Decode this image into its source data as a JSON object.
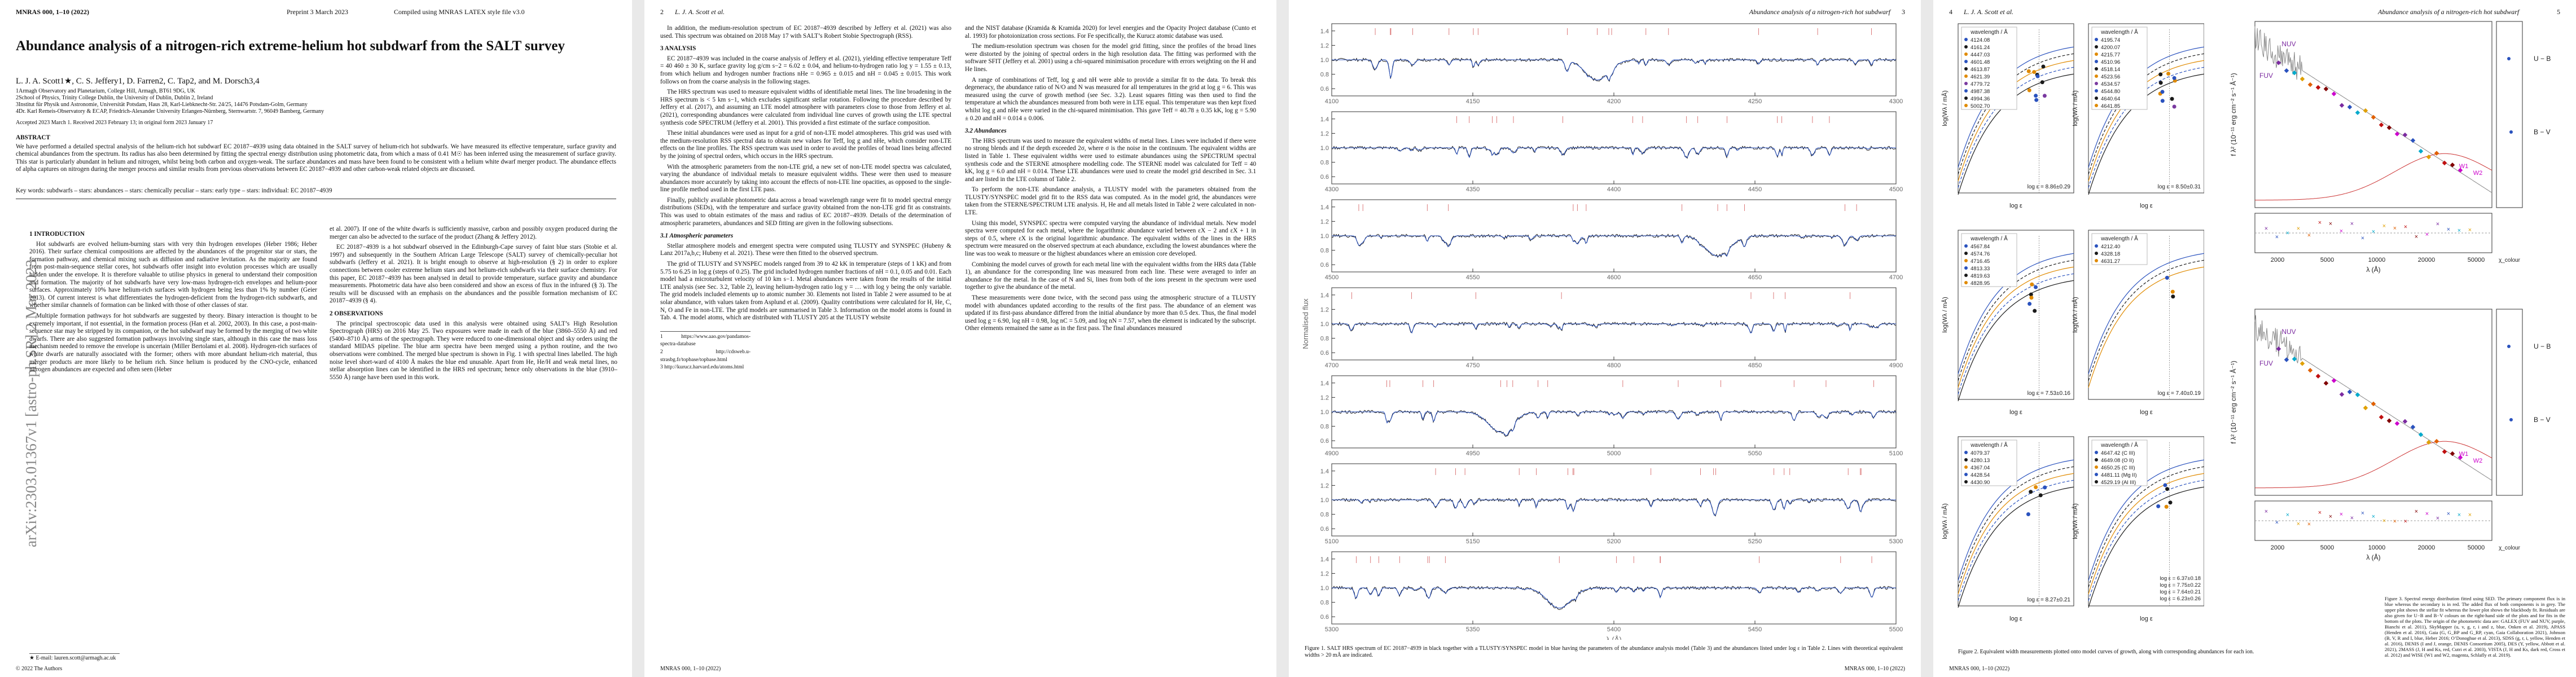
{
  "page1": {
    "header_left": "MNRAS 000, 1–10 (2022)",
    "header_mid": "Preprint 3 March 2023",
    "header_right": "Compiled using MNRAS LATEX style file v3.0",
    "title": "Abundance analysis of a nitrogen-rich extreme-helium hot subdwarf from the SALT survey",
    "authors": "L. J. A. Scott1★, C. S. Jeffery1, D. Farren2, C. Tap2, and M. Dorsch3,4",
    "affiliations": [
      "1Armagh Observatory and Planetarium, College Hill, Armagh, BT61 9DG, UK",
      "2School of Physics, Trinity College Dublin, the University of Dublin, Dublin 2, Ireland",
      "3Institut für Physik und Astronomie, Universität Potsdam, Haus 28, Karl-Liebknecht-Str. 24/25, 14476 Potsdam-Golm, Germany",
      "4Dr. Karl Remeis-Observatory & ECAP, Friedrich-Alexander University Erlangen-Nürnberg, Sternwartstr. 7, 96049 Bamberg, Germany"
    ],
    "accepted": "Accepted 2023 March 1. Received 2023 February 13; in original form 2023 January 17",
    "abstract_heading": "ABSTRACT",
    "abstract": "We have performed a detailed spectral analysis of the helium-rich hot subdwarf EC 20187−4939 using data obtained in the SALT survey of helium-rich hot subdwarfs. We have measured its effective temperature, surface gravity and chemical abundances from the spectrum. Its radius has also been determined by fitting the spectral energy distribution using photometric data, from which a mass of 0.41 M☉ has been inferred using the measurement of surface gravity. This star is particularly abundant in helium and nitrogen, whilst being both carbon and oxygen-weak. The surface abundances and mass have been found to be consistent with a helium white dwarf merger product. The abundance effects of alpha captures on nitrogen during the merger process and similar results from previous observations between EC 20187−4939 and other carbon-weak related objects are discussed.",
    "keywords": "Key words: subdwarfs – stars: abundances – stars: chemically peculiar – stars: early type – stars: individual: EC 20187−4939",
    "arxiv": "arXiv:2303.01367v1  [astro-ph.SR]  2 Mar 2023",
    "intro_heading": "1 INTRODUCTION",
    "intro_left": [
      "Hot subdwarfs are evolved helium-burning stars with very thin hydrogen envelopes (Heber 1986; Heber 2016). Their surface chemical compositions are affected by the abundances of the progenitor star or stars, the formation pathway, and chemical mixing such as diffusion and radiative levitation. As the majority are found from post-main-sequence stellar cores, hot subdwarfs offer insight into evolution processes which are usually hidden under the envelope. It is therefore valuable to utilise physics in general to understand their composition and formation. The majority of hot subdwarfs have very low-mass hydrogen-rich envelopes and helium-poor surfaces. Approximately 10% have helium-rich surfaces with hydrogen being less than 1% by number (Geier 2013). Of current interest is what differentiates the hydrogen-deficient from the hydrogen-rich subdwarfs, and whether similar channels of formation can be linked with those of other classes of star.",
      "Multiple formation pathways for hot subdwarfs are suggested by theory. Binary interaction is thought to be extremely important, if not essential, in the formation process (Han et al. 2002, 2003). In this case, a post-main-sequence star may be stripped by its companion, or the hot subdwarf may be formed by the merging of two white dwarfs. There are also suggested formation pathways involving single stars, although in this case the mass loss mechanism needed to remove the envelope is uncertain (Miller Bertolami et al. 2008). Hydrogen-rich surfaces of white dwarfs are naturally associated with the former; others with more abundant helium-rich material, thus merger products are more likely to be helium rich. Since helium is produced by the CNO-cycle, enhanced nitrogen abundances are expected and often seen (Heber"
    ],
    "intro_right": [
      "et al. 2007). If one of the white dwarfs is sufficiently massive, carbon and possibly oxygen produced during the merger can also be advected to the surface of the product (Zhang & Jeffery 2012).",
      "EC 20187−4939 is a hot subdwarf observed in the Edinburgh-Cape survey of faint blue stars (Stobie et al. 1997) and subsequently in the Southern African Large Telescope (SALT) survey of chemically-peculiar hot subdwarfs (Jeffery et al. 2021). It is bright enough to observe at high-resolution (§ 2) in order to explore connections between cooler extreme helium stars and hot helium-rich subdwarfs via their surface chemistry. For this paper, EC 20187−4939 has been analysed in detail to provide temperature, surface gravity and abundance measurements. Photometric data have also been considered and show an excess of flux in the infrared (§ 3). The results will be discussed with an emphasis on the abundances and the possible formation mechanism of EC 20187−4939 (§ 4)."
    ],
    "obs_heading": "2 OBSERVATIONS",
    "obs_text": [
      "The principal spectroscopic data used in this analysis were obtained using SALT’s High Resolution Spectrograph (HRS) on 2016 May 25. Two exposures were made in each of the blue (3860–5550 Å) and red (5400–8710 Å) arms of the spectrograph. They were reduced to one-dimensional object and sky orders using the standard MIDAS pipeline. The blue arm spectra have been merged using a python routine, and the two observations were combined. The merged blue spectrum is shown in Fig. 1 with spectral lines labelled. The high noise level short-ward of 4100 Å makes the blue end unusable. Apart from He, He/H and weak metal lines, no stellar absorption lines can be identified in the HRS red spectrum; hence only observations in the blue (3910–5550 Å) range have been used in this work."
    ],
    "footnote": "★ E-mail: lauren.scott@armagh.ac.uk",
    "footer": "© 2022 The Authors"
  },
  "page2": {
    "header_num": "2",
    "header_auth": "L. J. A. Scott et al.",
    "left": [
      "In addition, the medium-resolution spectrum of EC 20187−4939 described by Jeffery et al. (2021) was also used. This spectrum was obtained on 2018 May 17 with SALT’s Robert Stobie Spectrograph (RSS)."
    ],
    "h3": "3 ANALYSIS",
    "analysis": [
      "EC 20187−4939 was included in the coarse analysis of Jeffery et al. (2021), yielding effective temperature Teff = 40 460 ± 30 K, surface gravity log g/cm s−2 = 6.02 ± 0.04, and helium-to-hydrogen ratio log y = 1.55 ± 0.13, from which helium and hydrogen number fractions nHe = 0.965 ± 0.015 and nH = 0.045 ± 0.015. This work follows on from the coarse analysis in the following stages.",
      "The HRS spectrum was used to measure equivalent widths of identifiable metal lines. The line broadening in the HRS spectrum is < 5 km s−1, which excludes significant stellar rotation. Following the procedure described by Jeffery et al. (2017), and assuming an LTE model atmosphere with parameters close to those from Jeffery et al. (2021), corresponding abundances were calculated from individual line curves of growth using the LTE spectral synthesis code SPECTRUM (Jeffery et al. 2001). This provided a first estimate of the surface composition.",
      "These initial abundances were used as input for a grid of non-LTE model atmospheres. This grid was used with the medium-resolution RSS spectral data to obtain new values for Teff, log g and nHe, which consider non-LTE effects on the line profiles. The RSS spectrum was used in order to avoid the profiles of broad lines being affected by the joining of spectral orders, which occurs in the HRS spectrum.",
      "With the atmospheric parameters from the non-LTE grid, a new set of non-LTE model spectra was calculated, varying the abundance of individual metals to measure equivalent widths. These were then used to measure abundances more accurately by taking into account the effects of non-LTE line opacities, as opposed to the single-line profile method used in the first LTE pass.",
      "Finally, publicly available photometric data across a broad wavelength range were fit to model spectral energy distributions (SEDs), with the temperature and surface gravity obtained from the non-LTE grid fit as constraints. This was used to obtain estimates of the mass and radius of EC 20187−4939. Details of the determination of atmospheric parameters, abundances and SED fitting are given in the following subsections."
    ],
    "h31": "3.1 Atmospheric parameters",
    "ap": [
      "Stellar atmosphere models and emergent spectra were computed using TLUSTY and SYNSPEC (Hubeny & Lanz 2017a,b,c; Hubeny et al. 2021). These were then fitted to the observed spectrum.",
      "The grid of TLUSTY and SYNSPEC models ranged from 39 to 42 kK in temperature (steps of 1 kK) and from 5.75 to 6.25 in log g (steps of 0.25). The grid included hydrogen number fractions of nH = 0.1, 0.05 and 0.01. Each model had a microturbulent velocity of 10 km s−1. Metal abundances were taken from the results of the initial LTE analysis (see Sec. 3.2, Table 2), leaving helium-hydrogen ratio log y = … with log y being the only variable. The grid models included elements up to atomic number 30. Elements not listed in Table 2 were assumed to be at solar abundance, with values taken from Asplund et al. (2009). Quality contributions were calculated for H, He, C, N, O and Fe in non-LTE. The grid models are summarised in Table 3. Information on the model atoms is found in Tab. 4. The model atoms, which are distributed with TLUSTY 205 at the TLUSTY website"
    ],
    "right_top": [
      "and the NIST database (Kramida & Kramida 2020) for level energies and the Opacity Project database (Cunto et al. 1993) for photoionization cross sections. For Fe specifically, the Kurucz atomic database was used.",
      "The medium-resolution spectrum was chosen for the model grid fitting, since the profiles of the broad lines were distorted by the joining of spectral orders in the high resolution data. The fitting was performed with the software SFIT (Jeffery et al. 2001) using a chi-squared minimisation procedure with errors weighting on the H and He lines.",
      "A range of combinations of Teff, log g and nH were able to provide a similar fit to the data. To break this degeneracy, the abundance ratio of N/O and N was measured for all temperatures in the grid at log g = 6. This was measured using the curve of growth method (see Sec. 3.2). Least squares fitting was then used to find the temperature at which the abundances measured from both were in LTE equal. This temperature was then kept fixed whilst log g and nHe were varied in the chi-squared minimisation. This gave Teff = 40.78 ± 0.35 kK, log g = 5.90 ± 0.20 and nH = 0.014 ± 0.006."
    ],
    "h32": "3.2 Abundances",
    "ab": [
      "The HRS spectrum was used to measure the equivalent widths of metal lines. Lines were included if there were no strong blends and if the depth exceeded 2σ, where σ is the noise in the continuum. The equivalent widths are listed in Table 1. These equivalent widths were used to estimate abundances using the SPECTRUM spectral synthesis code and the STERNE atmosphere modelling code. The STERNE model was calculated for Teff = 40 kK, log g = 6.0 and nH = 0.014. These LTE abundances were used to create the model grid described in Sec. 3.1 and are listed in the LTE column of Table 2.",
      "To perform the non-LTE abundance analysis, a TLUSTY model with the parameters obtained from the TLUSTY/SYNSPEC model grid fit to the RSS data was computed. As in the model grid, the abundances were taken from the STERNE/SPECTRUM LTE analysis. H, He and all metals listed in Table 2 were calculated in non-LTE.",
      "Using this model, SYNSPEC spectra were computed varying the abundance of individual metals. New model spectra were computed for each metal, where the logarithmic abundance varied between εX − 2 and εX + 1 in steps of 0.5, where εX is the original logarithmic abundance. The equivalent widths of the lines in the HRS spectrum were measured on the observed spectrum at each abundance, excluding the lowest abundances where the line was too weak to measure or the highest abundances where an emission core developed.",
      "Combining the model curves of growth for each metal line with the equivalent widths from the HRS data (Table 1), an abundance for the corresponding line was measured from each line. These were averaged to infer an abundance for the metal. In the case of N and Si, lines from both of the ions present in the spectrum were used together to give the abundance of the metal.",
      "These measurements were done twice, with the second pass using the atmospheric structure of a TLUSTY model with abundances updated according to the results of the first pass. The abundance of an element was updated if its first-pass abundance differed from the initial abundance by more than 0.5 dex. Thus, the final model used log g = 6.90, log nH = 0.98, log nC = 5.09, and log nN = 7.57, when the element is indicated by the subscript. Other elements remained the same as in the first pass. The final abundances measured"
    ],
    "urls": [
      "1 https://www.aao.gov/pandamos-spectra-database",
      "2 http://cdsweb.u-strasbg.fr/topbase/topbase.html",
      "3 http://kurucz.harvard.edu/atoms.html"
    ],
    "footer": "MNRAS 000, 1–10 (2022)"
  },
  "page3": {
    "header_title": "Abundance analysis of a nitrogen-rich hot subdwarf",
    "header_num": "3",
    "spectrum_xlabel": "λ (Å)",
    "spectrum_ylabel": "Normalised flux",
    "caption": "Figure 1. SALT HRS spectrum of EC 20187−4939 in black together with a TLUSTY/SYNSPEC model in blue having the parameters of the abundance analysis model (Table 3) and the abundances listed under log ε in Table 2. Lines with theoretical equivalent widths > 20 mÅ are indicated.",
    "footer": "MNRAS 000, 1–10 (2022)"
  },
  "page4": {
    "header_num": "4",
    "header_auth": "L. J. A. Scott et al.",
    "header_title": "Abundance analysis of a nitrogen-rich hot subdwarf",
    "header_num2": "5",
    "caption_fig2": "Figure 2. Equivalent width measurements plotted onto model curves of growth, along with corresponding abundances for each ion.",
    "caption_fig3": "Figure 3. Spectral energy distribution fitted using SED. The primary component flux is in blue whereas the secondary is in red. The added flux of both components is in grey. The upper plot shows the stellar fit whereas the lower plot shows the blackbody fit. Residuals are also given for U−B and B−V colours on the right-hand side of the plots and for fits in the bottom of the plots. The origin of the photometric data are: GALEX (FUV and NUV, purple, Bianchi et al. 2011), SkyMapper (u, v, g, r, i and z, blue, Onken et al. 2019), APASS (Henden et al. 2016), Gaia (G, G_BP and G_RP, cyan, Gaia Collaboration 2021), Johnson (B, V, R and I, blue, Heber 2016; O’Donoghue et al. 2013), SDSS (g, r, i, yellow, Henden et al. 2016), DENIS (I and J, orange, DENIS Consortium 2005), DES (Y, yellow, Abbott et al. 2021), 2MASS (J, H and Ks, red, Cutri et al. 2003), VISTA (J, H and Ks, dark red, Cross et al. 2012) and WISE (W1 and W2, magenta, Schlafly et al. 2019).",
    "footer": "MNRAS 000, 1–10 (2022)"
  },
  "chart_data": [
    {
      "type": "line",
      "name": "HRS spectrum panels",
      "panels": [
        {
          "x_range": [
            4100,
            4300
          ],
          "ticks": [
            "4100",
            "4150",
            "4200",
            "4250",
            "4300"
          ]
        },
        {
          "x_range": [
            4300,
            4500
          ],
          "ticks": [
            "4300",
            "4350",
            "4400",
            "4450",
            "4500"
          ]
        },
        {
          "x_range": [
            4500,
            4700
          ],
          "ticks": [
            "4500",
            "4550",
            "4600",
            "4650",
            "4700"
          ]
        },
        {
          "x_range": [
            4700,
            4900
          ],
          "ticks": [
            "4700",
            "4750",
            "4800",
            "4850",
            "4900"
          ]
        },
        {
          "x_range": [
            4900,
            5100
          ],
          "ticks": [
            "4900",
            "4950",
            "5000",
            "5050",
            "5100"
          ]
        },
        {
          "x_range": [
            5100,
            5300
          ],
          "ticks": [
            "5100",
            "5150",
            "5200",
            "5250",
            "5300"
          ]
        },
        {
          "x_range": [
            5300,
            5500
          ],
          "ticks": [
            "5300",
            "5350",
            "5400",
            "5450",
            "5500"
          ]
        }
      ],
      "y_ticks": [
        "0.6",
        "0.8",
        "1.0",
        "1.2",
        "1.4"
      ],
      "series": [
        {
          "name": "observed",
          "color": "#111111"
        },
        {
          "name": "model",
          "color": "#2a52be"
        }
      ]
    },
    {
      "type": "scatter",
      "name": "curves of growth",
      "xlabel": "log ε",
      "ylabel": "log(Wλ / mÅ)",
      "panels": [
        {
          "legend_title": "wavelength / Å",
          "entries": [
            "4124.08",
            "4161.24",
            "4447.03",
            "4601.48",
            "4613.87",
            "4621.39",
            "4779.72",
            "4987.38",
            "4994.36",
            "5002.70"
          ],
          "result": "log ε = 8.86±0.29"
        },
        {
          "legend_title": "wavelength / Å",
          "entries": [
            "4195.74",
            "4200.07",
            "4215.77",
            "4510.96",
            "4518.14",
            "4523.56",
            "4534.57",
            "4544.80",
            "4640.64",
            "4641.85"
          ],
          "result": "log ε = 8.50±0.31"
        },
        {
          "legend_title": "wavelength / Å",
          "entries": [
            "4567.84",
            "4574.76",
            "4716.45",
            "4813.33",
            "4819.63",
            "4828.95"
          ],
          "result": "log ε = 7.53±0.16"
        },
        {
          "legend_title": "wavelength / Å",
          "entries": [
            "4212.40",
            "4328.18",
            "4631.27"
          ],
          "result": "log ε = 7.40±0.19"
        },
        {
          "legend_title": "wavelength / Å",
          "entries": [
            "4079.37",
            "4280.13",
            "4367.04",
            "4428.54",
            "4430.90"
          ],
          "result": "log ε = 8.27±0.21"
        },
        {
          "legend_title": "wavelength / Å",
          "entries": [
            "4647.42 (C III)",
            "4649.08 (O II)",
            "4650.25 (C III)",
            "4481.11 (Mg II)",
            "4529.19 (Al III)"
          ],
          "result": [
            "log ε = 6.37±0.18",
            "log ε = 7.75±0.22",
            "log ε = 7.64±0.21",
            "log ε = 6.23±0.26"
          ]
        }
      ]
    },
    {
      "type": "scatter",
      "name": "SED",
      "xlabel": "λ (Å)",
      "ylabel": "f λ² (10⁻¹¹ erg cm⁻² s⁻¹ Å⁻¹)",
      "ticks": [
        "2000",
        "5000",
        "10000",
        "20000",
        "50000"
      ],
      "labels": [
        "FUV",
        "NUV",
        "U − B",
        "B − V",
        "W1",
        "W2"
      ],
      "residual_label": "χ_colour"
    }
  ]
}
